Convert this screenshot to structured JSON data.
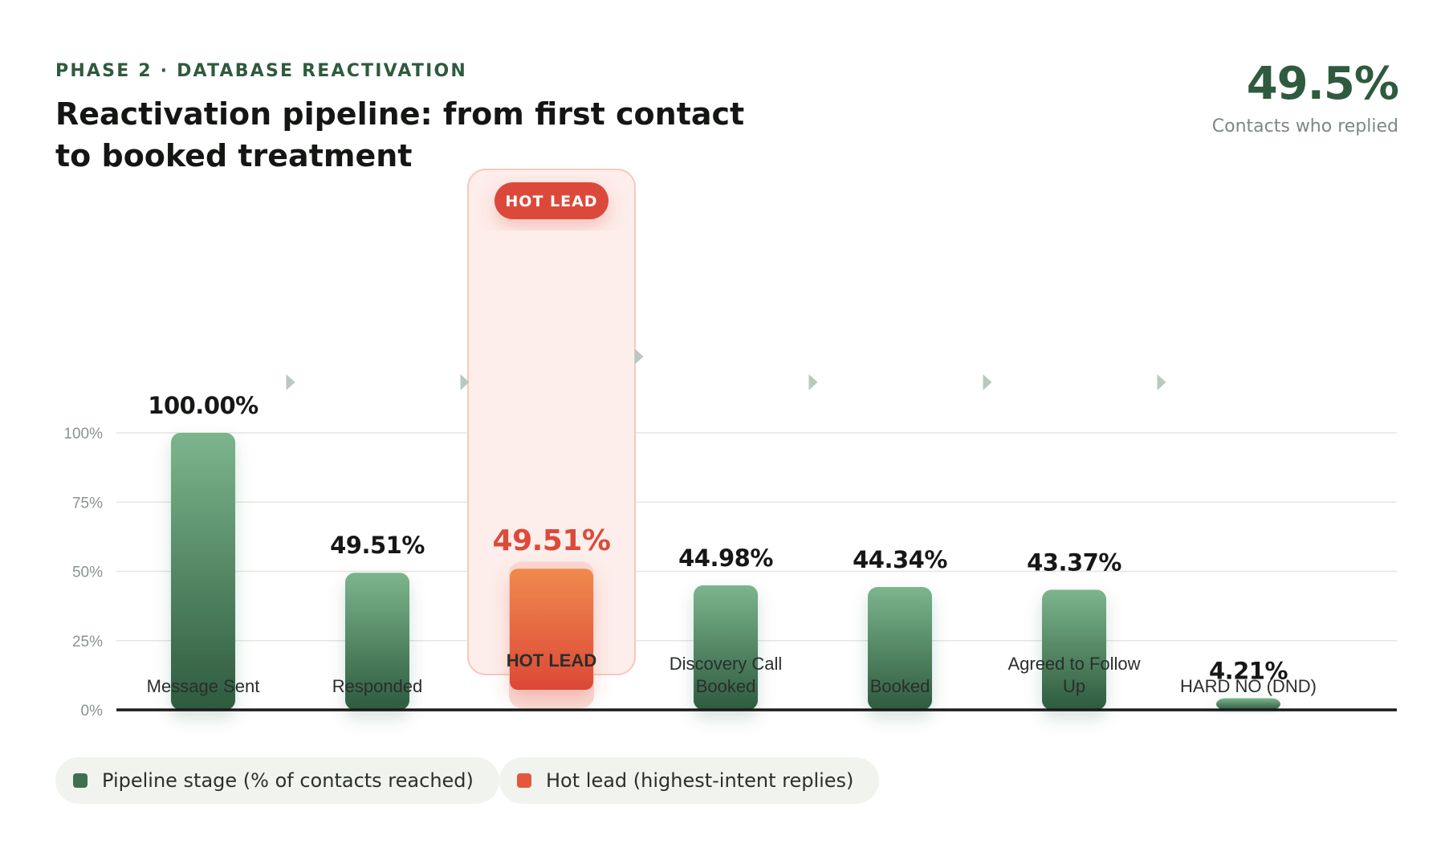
{
  "header": {
    "eyebrow": "PHASE 2 · DATABASE REACTIVATION",
    "title": "Reactivation pipeline: from first contact to booked treatment"
  },
  "kpi": {
    "value": "49.5%",
    "label": "Contacts who replied"
  },
  "colors": {
    "green_top": "#7cb58d",
    "green_bottom": "#2e5b3e",
    "orange_top": "#f08a4e",
    "orange_bottom": "#dc4836",
    "hot_accent": "#dc4a3a",
    "axis": "#1a1a1a",
    "grid": "#e3e6e2",
    "highlight_fill": "#fdeeeb",
    "highlight_border": "#f6c9c1"
  },
  "legend": {
    "pipeline": "Pipeline stage (% of contacts reached)",
    "hot": "Hot lead (highest-intent replies)"
  },
  "chart_data": {
    "type": "bar",
    "categories": [
      "Message Sent",
      "Responded",
      "HOT LEAD",
      "Discovery Call Booked",
      "Booked",
      "Agreed to Follow Up",
      "HARD NO (DND)"
    ],
    "values": [
      100.0,
      49.51,
      49.51,
      44.98,
      44.34,
      43.37,
      4.21
    ],
    "value_labels": [
      "100.00%",
      "49.51%",
      "49.51%",
      "44.98%",
      "44.34%",
      "43.37%",
      "4.21%"
    ],
    "highlight_index": 2,
    "highlight_badge": "HOT LEAD",
    "y_ticks": [
      "0%",
      "25%",
      "50%",
      "75%",
      "100%"
    ],
    "ylim": [
      0,
      100
    ],
    "grid": true,
    "legend_position": "bottom-left",
    "xlabel": "",
    "ylabel": ""
  }
}
